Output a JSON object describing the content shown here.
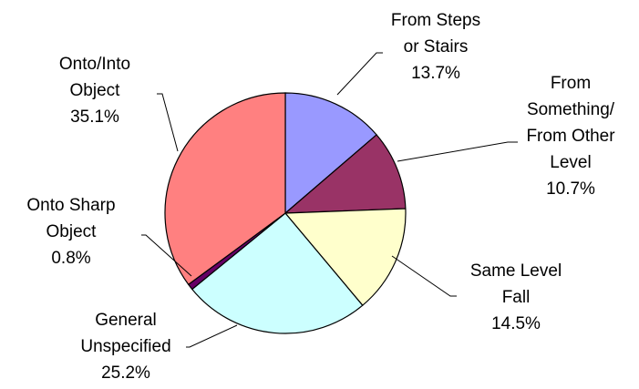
{
  "chart_data": {
    "type": "pie",
    "start_angle_deg": 0,
    "direction": "clockwise",
    "slices": [
      {
        "name_lines": [
          "From Steps",
          "or Stairs"
        ],
        "label": "13.7%",
        "value": 13.7,
        "color": "#9999ff"
      },
      {
        "name_lines": [
          "From",
          "Something/",
          "From Other",
          "Level"
        ],
        "label": "10.7%",
        "value": 10.7,
        "color": "#993366"
      },
      {
        "name_lines": [
          "Same Level",
          "Fall"
        ],
        "label": "14.5%",
        "value": 14.5,
        "color": "#ffffcc"
      },
      {
        "name_lines": [
          "General",
          "Unspecified"
        ],
        "label": "25.2%",
        "value": 25.2,
        "color": "#ccffff"
      },
      {
        "name_lines": [
          "Onto Sharp",
          "Object"
        ],
        "label": "0.8%",
        "value": 0.8,
        "color": "#660066"
      },
      {
        "name_lines": [
          "Onto/Into",
          "Object"
        ],
        "label": "35.1%",
        "value": 35.1,
        "color": "#ff8080"
      }
    ]
  }
}
